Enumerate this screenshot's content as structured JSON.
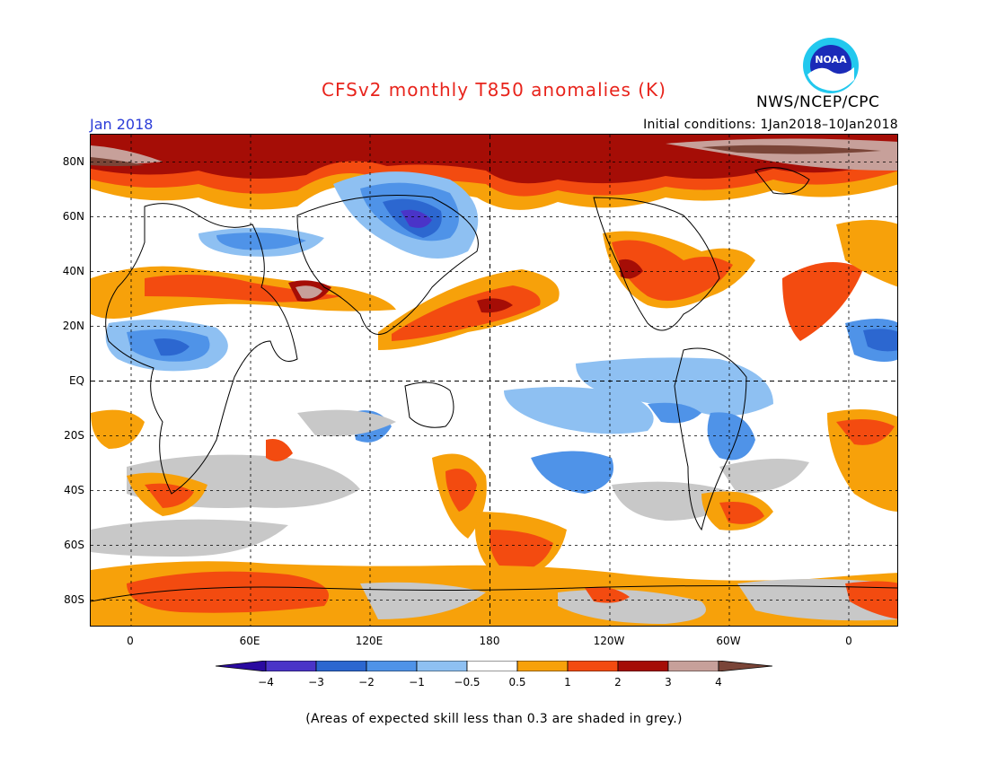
{
  "header": {
    "title": "CFSv2 monthly T850 anomalies (K)",
    "agency": "NWS/NCEP/CPC",
    "month": "Jan 2018",
    "initial_conditions": "Initial conditions: 1Jan2018–10Jan2018",
    "logo_icon": "noaa-logo-icon",
    "logo_text": "NOAA"
  },
  "map": {
    "lat_labels": [
      "80N",
      "60N",
      "40N",
      "20N",
      "EQ",
      "20S",
      "40S",
      "60S",
      "80S"
    ],
    "lon_labels": [
      "0",
      "60E",
      "120E",
      "180",
      "120W",
      "60W",
      "0"
    ]
  },
  "colorbar": {
    "labels": [
      "−4",
      "−3",
      "−2",
      "−1",
      "−0.5",
      "0.5",
      "1",
      "2",
      "3",
      "4"
    ],
    "colors": [
      "#2a0aa0",
      "#4a34c8",
      "#2c67d0",
      "#4f93e8",
      "#8ec0f2",
      "#ffffff",
      "#f7a10a",
      "#f34b10",
      "#a50d06",
      "#c7a09a",
      "#7a4538"
    ]
  },
  "footnote": "(Areas of expected skill less than 0.3 are shaded in grey.)",
  "colors": {
    "title": "#e8241c",
    "month": "#2b3cd8",
    "skill_grey": "#c8c8c8"
  }
}
